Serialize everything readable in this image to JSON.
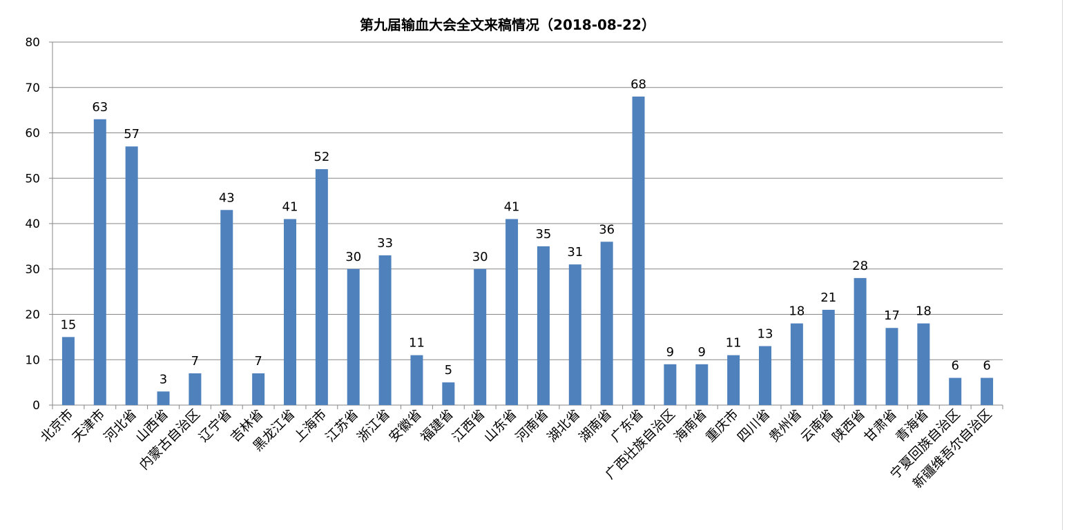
{
  "chart_data": {
    "type": "bar",
    "title": "第九届输血大会全文来稿情况（2018-08-22）",
    "xlabel": "",
    "ylabel": "",
    "ylim": [
      0,
      80
    ],
    "yticks": [
      0,
      10,
      20,
      30,
      40,
      50,
      60,
      70,
      80
    ],
    "grid": true,
    "bar_color": "#4f81bd",
    "categories": [
      "北京市",
      "天津市",
      "河北省",
      "山西省",
      "内蒙古自治区",
      "辽宁省",
      "吉林省",
      "黑龙江省",
      "上海市",
      "江苏省",
      "浙江省",
      "安徽省",
      "福建省",
      "江西省",
      "山东省",
      "河南省",
      "湖北省",
      "湖南省",
      "广东省",
      "广西壮族自治区",
      "海南省",
      "重庆市",
      "四川省",
      "贵州省",
      "云南省",
      "陕西省",
      "甘肃省",
      "青海省",
      "宁夏回族自治区",
      "新疆维吾尔自治区"
    ],
    "values": [
      15,
      63,
      57,
      3,
      7,
      43,
      7,
      41,
      52,
      30,
      33,
      11,
      5,
      30,
      41,
      35,
      31,
      36,
      68,
      9,
      9,
      11,
      13,
      18,
      21,
      28,
      17,
      18,
      6,
      6
    ],
    "data_labels": true
  }
}
